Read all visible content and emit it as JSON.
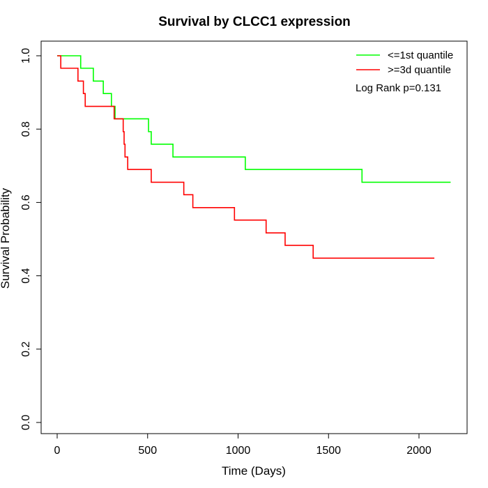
{
  "chart_data": {
    "type": "line",
    "style": "step",
    "title": "Survival by CLCC1 expression",
    "xlabel": "Time (Days)",
    "ylabel": "Survival Probability",
    "xlim": [
      0,
      2180
    ],
    "ylim": [
      0,
      1
    ],
    "xticks": [
      0,
      500,
      1000,
      1500,
      2000
    ],
    "yticks": [
      0.0,
      0.2,
      0.4,
      0.6,
      0.8,
      1.0
    ],
    "xtick_labels": [
      "0",
      "500",
      "1000",
      "1500",
      "2000"
    ],
    "ytick_labels": [
      "0.0",
      "0.2",
      "0.4",
      "0.6",
      "0.8",
      "1.0"
    ],
    "grid": false,
    "legend_position": "top-right",
    "annotation": "Log Rank p=0.131",
    "series": [
      {
        "name": "<=1st quantile",
        "color": "#00ff00",
        "x": [
          0,
          130,
          200,
          255,
          300,
          320,
          505,
          520,
          640,
          1040,
          1685,
          2175
        ],
        "y": [
          1.0,
          0.966,
          0.931,
          0.897,
          0.862,
          0.828,
          0.793,
          0.759,
          0.724,
          0.69,
          0.655,
          0.655
        ]
      },
      {
        "name": ">=3d quantile",
        "color": "#ff0000",
        "x": [
          0,
          20,
          115,
          145,
          155,
          310,
          315,
          360,
          365,
          370,
          375,
          380,
          385,
          390,
          520,
          700,
          750,
          980,
          1155,
          1260,
          1415,
          2085
        ],
        "y": [
          1.0,
          0.966,
          0.931,
          0.897,
          0.862,
          0.862,
          0.828,
          0.828,
          0.793,
          0.759,
          0.724,
          0.724,
          0.724,
          0.69,
          0.655,
          0.621,
          0.586,
          0.552,
          0.517,
          0.483,
          0.448,
          0.448
        ]
      }
    ]
  }
}
